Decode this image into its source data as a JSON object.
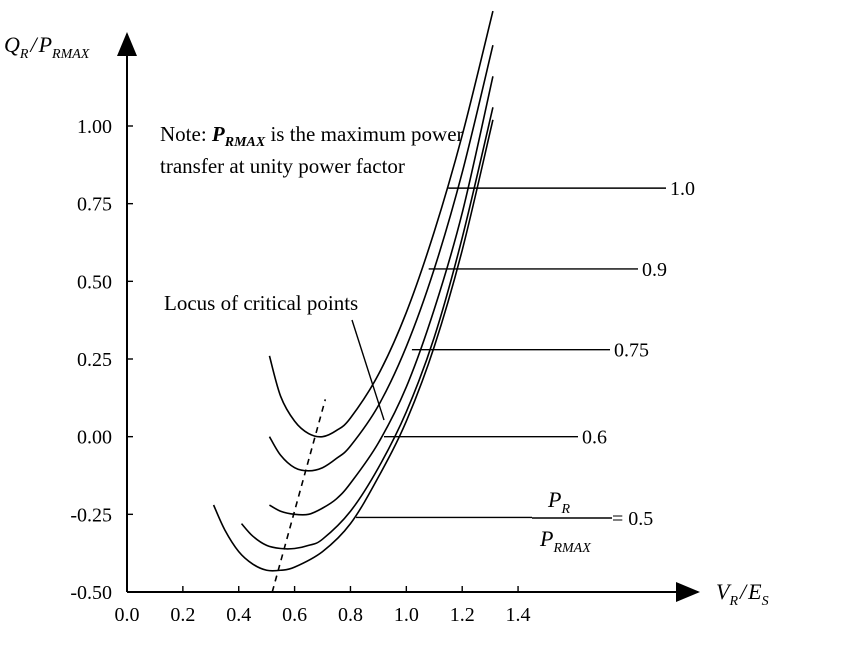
{
  "chart_data": {
    "type": "line",
    "xlabel": {
      "main": "V",
      "main_sub": "R",
      "sep": "/",
      "second": "E",
      "second_sub": "S"
    },
    "ylabel": {
      "main": "Q",
      "main_sub": "R",
      "sep": "/",
      "second": "P",
      "second_sub": "RMAX"
    },
    "xlim": [
      0.0,
      1.5
    ],
    "ylim": [
      -0.5,
      1.25
    ],
    "x_ticks": [
      "0.0",
      "0.2",
      "0.4",
      "0.6",
      "0.8",
      "1.0",
      "1.2",
      "1.4"
    ],
    "y_ticks": [
      "-0.50",
      "-0.25",
      "0.00",
      "0.25",
      "0.50",
      "0.75",
      "1.00"
    ],
    "grid": false,
    "note": {
      "prefix": "Note: ",
      "symbol": "P",
      "symbol_sub": "RMAX",
      "line1_rest": " is the maximum power",
      "line2": "transfer at unity power factor"
    },
    "locus_label": "Locus of critical points",
    "ratio_label": {
      "num": "P",
      "num_sub": "R",
      "den": "P",
      "den_sub": "RMAX",
      "suffix": " = 0.5"
    },
    "series": [
      {
        "name": "1.0",
        "x": [
          0.51,
          0.55,
          0.6,
          0.65,
          0.7,
          0.75,
          0.8,
          0.9,
          1.0,
          1.1,
          1.2,
          1.31
        ],
        "y": [
          0.26,
          0.13,
          0.05,
          0.01,
          0.0,
          0.02,
          0.06,
          0.2,
          0.4,
          0.66,
          0.97,
          1.37
        ]
      },
      {
        "name": "0.9",
        "x": [
          0.51,
          0.55,
          0.6,
          0.65,
          0.7,
          0.75,
          0.8,
          0.9,
          1.0,
          1.1,
          1.2,
          1.31
        ],
        "y": [
          0.0,
          -0.06,
          -0.1,
          -0.11,
          -0.1,
          -0.07,
          -0.03,
          0.1,
          0.29,
          0.54,
          0.85,
          1.26
        ]
      },
      {
        "name": "0.75",
        "x": [
          0.51,
          0.55,
          0.6,
          0.65,
          0.7,
          0.75,
          0.8,
          0.9,
          1.0,
          1.1,
          1.2,
          1.31
        ],
        "y": [
          -0.22,
          -0.24,
          -0.25,
          -0.25,
          -0.23,
          -0.2,
          -0.15,
          -0.02,
          0.16,
          0.41,
          0.72,
          1.16
        ]
      },
      {
        "name": "0.6",
        "x": [
          0.41,
          0.45,
          0.5,
          0.55,
          0.6,
          0.65,
          0.7,
          0.8,
          0.9,
          1.0,
          1.1,
          1.2,
          1.31
        ],
        "y": [
          -0.28,
          -0.32,
          -0.35,
          -0.36,
          -0.36,
          -0.35,
          -0.33,
          -0.24,
          -0.1,
          0.08,
          0.32,
          0.64,
          1.06
        ]
      },
      {
        "name": "0.5",
        "x": [
          0.31,
          0.35,
          0.4,
          0.45,
          0.5,
          0.55,
          0.6,
          0.7,
          0.8,
          0.9,
          1.0,
          1.1,
          1.2,
          1.31
        ],
        "y": [
          -0.22,
          -0.3,
          -0.37,
          -0.41,
          -0.43,
          -0.43,
          -0.42,
          -0.37,
          -0.28,
          -0.13,
          0.05,
          0.29,
          0.6,
          1.02
        ]
      }
    ],
    "locus_line": {
      "x": [
        0.52,
        0.71
      ],
      "y": [
        -0.5,
        0.12
      ]
    },
    "leaders": [
      {
        "label": "1.0",
        "from": [
          1.15,
          0.8
        ]
      },
      {
        "label": "0.9",
        "from": [
          1.08,
          0.54
        ]
      },
      {
        "label": "0.75",
        "from": [
          1.02,
          0.28
        ]
      },
      {
        "label": "0.6",
        "from": [
          0.92,
          0.0
        ]
      },
      {
        "label": "0.5",
        "from": [
          0.82,
          -0.26
        ]
      }
    ]
  }
}
